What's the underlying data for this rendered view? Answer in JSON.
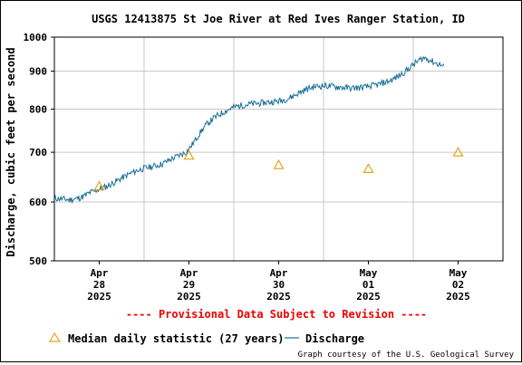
{
  "chart_data": {
    "type": "line",
    "title": "USGS 12413875 St Joe River at Red Ives Ranger Station, ID",
    "ylabel": "Discharge, cubic feet per second",
    "xlabel": "",
    "y_scale": "log",
    "ylim": [
      500,
      1000
    ],
    "y_ticks": [
      {
        "value": 1000,
        "label": "1000"
      },
      {
        "value": 900,
        "label": "900"
      },
      {
        "value": 800,
        "label": "800"
      },
      {
        "value": 700,
        "label": "700"
      },
      {
        "value": 600,
        "label": "600"
      },
      {
        "value": 500,
        "label": "500"
      }
    ],
    "x_range_days": [
      0,
      5
    ],
    "x_ticks": [
      {
        "day": 0.5,
        "line1": "Apr",
        "line2": "28",
        "line3": "2025"
      },
      {
        "day": 1.5,
        "line1": "Apr",
        "line2": "29",
        "line3": "2025"
      },
      {
        "day": 2.5,
        "line1": "Apr",
        "line2": "30",
        "line3": "2025"
      },
      {
        "day": 3.5,
        "line1": "May",
        "line2": "01",
        "line3": "2025"
      },
      {
        "day": 4.5,
        "line1": "May",
        "line2": "02",
        "line3": "2025"
      }
    ],
    "grid": true,
    "colors": {
      "discharge": "#1a6e96",
      "median": "#e8a317",
      "provisional": "#ee0000"
    },
    "series": [
      {
        "name": "Discharge",
        "kind": "line",
        "points": [
          [
            0.0,
            607
          ],
          [
            0.08,
            606
          ],
          [
            0.16,
            604
          ],
          [
            0.24,
            606
          ],
          [
            0.32,
            610
          ],
          [
            0.4,
            618
          ],
          [
            0.5,
            624
          ],
          [
            0.6,
            631
          ],
          [
            0.7,
            641
          ],
          [
            0.8,
            651
          ],
          [
            0.9,
            660
          ],
          [
            1.0,
            666
          ],
          [
            1.1,
            670
          ],
          [
            1.2,
            675
          ],
          [
            1.3,
            685
          ],
          [
            1.4,
            694
          ],
          [
            1.47,
            700
          ],
          [
            1.52,
            712
          ],
          [
            1.58,
            730
          ],
          [
            1.64,
            748
          ],
          [
            1.7,
            764
          ],
          [
            1.77,
            777
          ],
          [
            1.84,
            787
          ],
          [
            1.92,
            797
          ],
          [
            2.0,
            805
          ],
          [
            2.1,
            810
          ],
          [
            2.2,
            813
          ],
          [
            2.3,
            815
          ],
          [
            2.4,
            818
          ],
          [
            2.5,
            820
          ],
          [
            2.6,
            826
          ],
          [
            2.7,
            838
          ],
          [
            2.8,
            850
          ],
          [
            2.9,
            858
          ],
          [
            3.0,
            860
          ],
          [
            3.1,
            859
          ],
          [
            3.2,
            856
          ],
          [
            3.3,
            854
          ],
          [
            3.4,
            855
          ],
          [
            3.5,
            858
          ],
          [
            3.6,
            863
          ],
          [
            3.7,
            870
          ],
          [
            3.78,
            878
          ],
          [
            3.86,
            890
          ],
          [
            3.94,
            905
          ],
          [
            4.0,
            918
          ],
          [
            4.06,
            930
          ],
          [
            4.12,
            938
          ],
          [
            4.18,
            932
          ],
          [
            4.24,
            924
          ],
          [
            4.3,
            918
          ],
          [
            4.34,
            914
          ]
        ]
      },
      {
        "name": "Median daily statistic (27 years)",
        "kind": "marker",
        "points": [
          [
            0.5,
            630
          ],
          [
            1.5,
            693
          ],
          [
            2.5,
            673
          ],
          [
            3.5,
            665
          ],
          [
            4.5,
            700
          ]
        ]
      }
    ],
    "provisional_note": "---- Provisional Data Subject to Revision ----",
    "legend": {
      "placement": "bottom",
      "median_label": "Median daily statistic (27 years)",
      "discharge_label": "Discharge"
    },
    "credit": "Graph courtesy of the U.S. Geological Survey"
  }
}
